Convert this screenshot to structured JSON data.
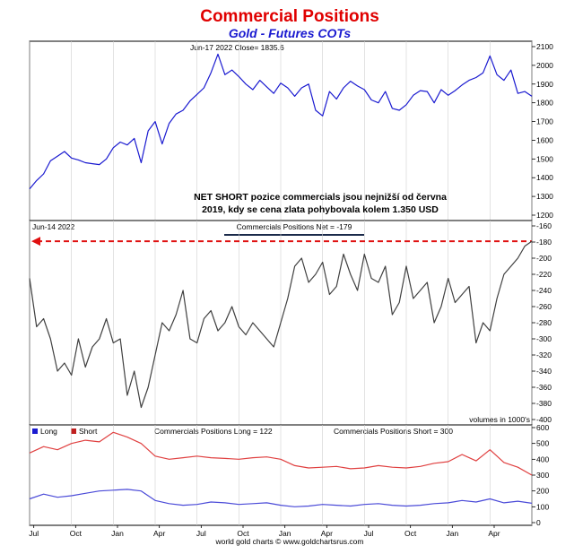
{
  "title": "Commercial Positions",
  "subtitle": "Gold - Futures COTs",
  "footer": "world gold charts © www.goldchartsrus.com",
  "chart_data": [
    {
      "type": "line",
      "id": "price",
      "header": "Jun-17  2022   Close= 1835.6",
      "ylim": [
        1200,
        2100
      ],
      "yticks": [
        1200,
        1300,
        1400,
        1500,
        1600,
        1700,
        1800,
        1900,
        2000,
        2100
      ],
      "xlim": [
        0,
        36
      ],
      "annotation": [
        "NET SHORT pozice commercials jsou nejnižší od června",
        "2019, kdy se cena zlata pohybovala kolem 1.350 USD"
      ],
      "series": [
        {
          "name": "Gold price",
          "color": "#1a1ad0",
          "x": [
            0,
            0.5,
            1,
            1.5,
            2,
            2.5,
            3,
            3.5,
            4,
            4.5,
            5,
            5.5,
            6,
            6.5,
            7,
            7.5,
            8,
            8.5,
            9,
            9.5,
            10,
            10.5,
            11,
            11.5,
            12,
            12.5,
            13,
            13.5,
            14,
            14.5,
            15,
            15.5,
            16,
            16.5,
            17,
            17.5,
            18,
            18.5,
            19,
            19.5,
            20,
            20.5,
            21,
            21.5,
            22,
            22.5,
            23,
            23.5,
            24,
            24.5,
            25,
            25.5,
            26,
            26.5,
            27,
            27.5,
            28,
            28.5,
            29,
            29.5,
            30,
            30.5,
            31,
            31.5,
            32,
            32.5,
            33,
            33.5,
            34,
            34.5,
            35,
            35.5,
            36
          ],
          "values": [
            1340,
            1385,
            1420,
            1490,
            1515,
            1540,
            1505,
            1495,
            1480,
            1475,
            1470,
            1500,
            1560,
            1590,
            1575,
            1610,
            1480,
            1650,
            1700,
            1580,
            1690,
            1740,
            1760,
            1810,
            1845,
            1880,
            1960,
            2060,
            1950,
            1975,
            1940,
            1900,
            1870,
            1920,
            1885,
            1850,
            1905,
            1880,
            1835,
            1880,
            1900,
            1760,
            1730,
            1860,
            1820,
            1880,
            1915,
            1890,
            1870,
            1815,
            1800,
            1860,
            1770,
            1760,
            1790,
            1840,
            1865,
            1860,
            1800,
            1870,
            1840,
            1865,
            1895,
            1920,
            1935,
            1960,
            2050,
            1950,
            1920,
            1975,
            1850,
            1860,
            1835
          ]
        }
      ]
    },
    {
      "type": "line",
      "id": "net",
      "header": "Jun-14  2022",
      "legend": "Commercials Positions Net = -179",
      "units_note": "volumes in 1000's",
      "ylim": [
        -400,
        -160
      ],
      "yticks": [
        -400,
        -380,
        -360,
        -340,
        -320,
        -300,
        -280,
        -260,
        -240,
        -220,
        -200,
        -180,
        -160
      ],
      "xlim": [
        0,
        36
      ],
      "reference_line": -179,
      "series": [
        {
          "name": "Commercials Positions Net",
          "color": "#404040",
          "x": [
            0,
            0.5,
            1,
            1.5,
            2,
            2.5,
            3,
            3.5,
            4,
            4.5,
            5,
            5.5,
            6,
            6.5,
            7,
            7.5,
            8,
            8.5,
            9,
            9.5,
            10,
            10.5,
            11,
            11.5,
            12,
            12.5,
            13,
            13.5,
            14,
            14.5,
            15,
            15.5,
            16,
            16.5,
            17,
            17.5,
            18,
            18.5,
            19,
            19.5,
            20,
            20.5,
            21,
            21.5,
            22,
            22.5,
            23,
            23.5,
            24,
            24.5,
            25,
            25.5,
            26,
            26.5,
            27,
            27.5,
            28,
            28.5,
            29,
            29.5,
            30,
            30.5,
            31,
            31.5,
            32,
            32.5,
            33,
            33.5,
            34,
            34.5,
            35,
            35.5,
            36
          ],
          "values": [
            -225,
            -285,
            -275,
            -300,
            -340,
            -330,
            -345,
            -300,
            -335,
            -310,
            -300,
            -275,
            -305,
            -300,
            -370,
            -340,
            -385,
            -360,
            -320,
            -280,
            -290,
            -270,
            -240,
            -300,
            -305,
            -275,
            -265,
            -290,
            -280,
            -260,
            -285,
            -295,
            -280,
            -290,
            -300,
            -310,
            -280,
            -250,
            -210,
            -200,
            -230,
            -220,
            -205,
            -245,
            -235,
            -195,
            -220,
            -240,
            -195,
            -225,
            -230,
            -210,
            -270,
            -255,
            -210,
            -250,
            -240,
            -230,
            -280,
            -260,
            -225,
            -255,
            -245,
            -235,
            -305,
            -280,
            -290,
            -250,
            -220,
            -210,
            -200,
            -185,
            -179
          ]
        }
      ]
    },
    {
      "type": "line",
      "id": "long-short",
      "legend": [
        "Long",
        "Short"
      ],
      "legend_long_text": "Commercials Positions Long = 122",
      "legend_short_text": "Commercials Positions Short = 300",
      "ylim": [
        0,
        600
      ],
      "yticks": [
        0,
        100,
        200,
        300,
        400,
        500,
        600
      ],
      "xlim": [
        0,
        36
      ],
      "xtick_labels": [
        {
          "x": 0.3,
          "label": "Jul"
        },
        {
          "x": 3.3,
          "label": "Oct"
        },
        {
          "x": 6.3,
          "label": "Jan"
        },
        {
          "x": 9.3,
          "label": "Apr"
        },
        {
          "x": 12.3,
          "label": "Jul"
        },
        {
          "x": 15.3,
          "label": "Oct"
        },
        {
          "x": 18.3,
          "label": "Jan"
        },
        {
          "x": 21.3,
          "label": "Apr"
        },
        {
          "x": 24.3,
          "label": "Jul"
        },
        {
          "x": 27.3,
          "label": "Oct"
        },
        {
          "x": 30.3,
          "label": "Jan"
        },
        {
          "x": 33.3,
          "label": "Apr"
        }
      ],
      "series": [
        {
          "name": "Long",
          "color": "#4a4ad8",
          "x": [
            0,
            1,
            2,
            3,
            4,
            5,
            6,
            7,
            8,
            9,
            10,
            11,
            12,
            13,
            14,
            15,
            16,
            17,
            18,
            19,
            20,
            21,
            22,
            23,
            24,
            25,
            26,
            27,
            28,
            29,
            30,
            31,
            32,
            33,
            34,
            35,
            36
          ],
          "values": [
            150,
            180,
            160,
            170,
            185,
            200,
            205,
            210,
            200,
            140,
            120,
            110,
            115,
            130,
            125,
            115,
            120,
            125,
            110,
            100,
            105,
            115,
            110,
            105,
            115,
            120,
            110,
            105,
            110,
            120,
            125,
            140,
            130,
            150,
            125,
            135,
            122
          ]
        },
        {
          "name": "Short",
          "color": "#e04040",
          "x": [
            0,
            1,
            2,
            3,
            4,
            5,
            6,
            7,
            8,
            9,
            10,
            11,
            12,
            13,
            14,
            15,
            16,
            17,
            18,
            19,
            20,
            21,
            22,
            23,
            24,
            25,
            26,
            27,
            28,
            29,
            30,
            31,
            32,
            33,
            34,
            35,
            36
          ],
          "values": [
            440,
            480,
            460,
            500,
            520,
            510,
            570,
            540,
            500,
            420,
            400,
            410,
            420,
            410,
            405,
            400,
            410,
            415,
            400,
            360,
            345,
            350,
            355,
            340,
            345,
            360,
            350,
            345,
            355,
            375,
            385,
            430,
            390,
            460,
            380,
            350,
            300
          ]
        }
      ]
    }
  ]
}
